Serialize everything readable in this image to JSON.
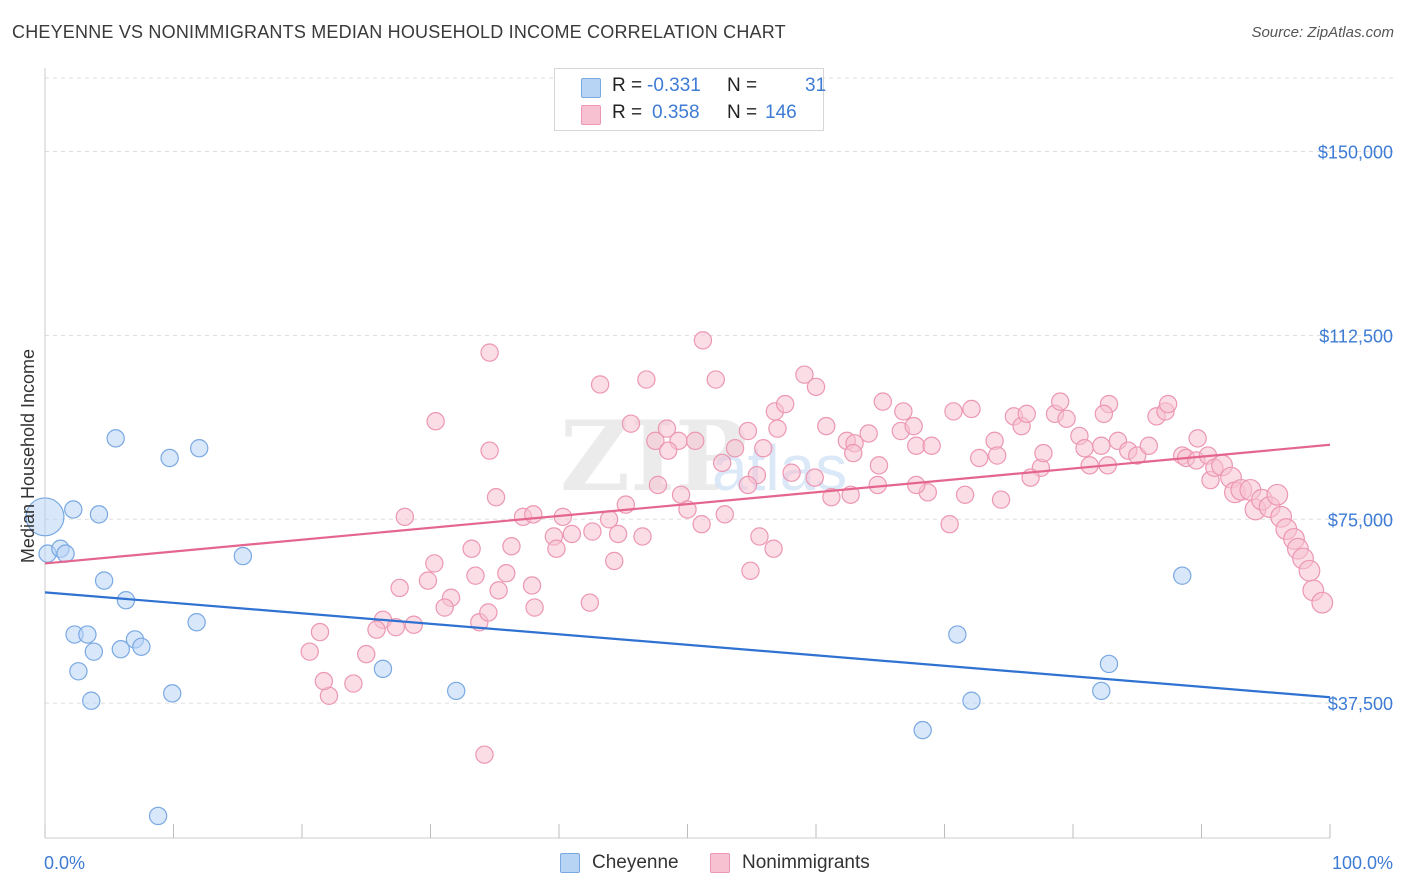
{
  "title": "CHEYENNE VS NONIMMIGRANTS MEDIAN HOUSEHOLD INCOME CORRELATION CHART",
  "source": "Source: ZipAtlas.com",
  "colors": {
    "cheyenne_fill": "#b8d4f5",
    "cheyenne_stroke": "#7aa9e2",
    "cheyenne_line": "#2f72d1",
    "nonimm_fill": "#f7c1d2",
    "nonimm_stroke": "#ec97b3",
    "nonimm_line": "#e4668f",
    "axis_text": "#3d7bd4",
    "grid": "#dddddd"
  },
  "legend_top": {
    "rows": [
      {
        "r_label": "R =",
        "r_value": "-0.331",
        "n_label": "N =",
        "n_value": "31"
      },
      {
        "r_label": "R =",
        "r_value": "0.358",
        "n_label": "N =",
        "n_value": "146"
      }
    ]
  },
  "legend_bottom": {
    "items": [
      "Cheyenne",
      "Nonimmigrants"
    ]
  },
  "chart_data": {
    "type": "scatter",
    "title": "CHEYENNE VS NONIMMIGRANTS MEDIAN HOUSEHOLD INCOME CORRELATION CHART",
    "xlabel": "",
    "ylabel": "Median Household Income",
    "xlim": [
      0,
      100
    ],
    "ylim": [
      10000,
      165000
    ],
    "x_tick_labels": [
      "0.0%",
      "100.0%"
    ],
    "y_ticks": [
      37500,
      75000,
      112500,
      150000
    ],
    "y_tick_labels": [
      "$37,500",
      "$75,000",
      "$112,500",
      "$150,000"
    ],
    "grid": true,
    "legend_position": "top-center",
    "watermark": "ZIPatlas",
    "series": [
      {
        "name": "Cheyenne",
        "trend": {
          "x": [
            0,
            100
          ],
          "y": [
            60100,
            38700
          ]
        },
        "points": [
          [
            0.0,
            75500,
            22
          ],
          [
            0.2,
            68000,
            10
          ],
          [
            1.2,
            69000,
            10
          ],
          [
            1.6,
            68000,
            10
          ],
          [
            2.2,
            77000,
            10
          ],
          [
            4.2,
            76000,
            10
          ],
          [
            5.5,
            91500,
            10
          ],
          [
            9.7,
            87500,
            10
          ],
          [
            12.0,
            89500,
            10
          ],
          [
            4.6,
            62500,
            10
          ],
          [
            6.3,
            58500,
            10
          ],
          [
            2.3,
            51500,
            10
          ],
          [
            3.3,
            51500,
            10
          ],
          [
            7.0,
            50500,
            10
          ],
          [
            3.8,
            48000,
            10
          ],
          [
            5.9,
            48500,
            10
          ],
          [
            7.5,
            49000,
            10
          ],
          [
            2.6,
            44000,
            10
          ],
          [
            11.8,
            54000,
            10
          ],
          [
            3.6,
            38000,
            10
          ],
          [
            9.9,
            39500,
            10
          ],
          [
            15.4,
            67500,
            10
          ],
          [
            26.3,
            44500,
            10
          ],
          [
            32.0,
            40000,
            10
          ],
          [
            68.3,
            32000,
            10
          ],
          [
            71.0,
            51500,
            10
          ],
          [
            72.1,
            38000,
            10
          ],
          [
            82.8,
            45500,
            10
          ],
          [
            82.2,
            40000,
            10
          ],
          [
            88.5,
            63500,
            10
          ],
          [
            8.8,
            14500,
            10
          ]
        ]
      },
      {
        "name": "Nonimmigrants",
        "trend": {
          "x": [
            0,
            100
          ],
          "y": [
            66000,
            90200
          ]
        },
        "points": [
          [
            34.6,
            109000,
            10
          ],
          [
            51.2,
            111500,
            10
          ],
          [
            43.2,
            102500,
            10
          ],
          [
            46.8,
            103500,
            10
          ],
          [
            52.2,
            103500,
            10
          ],
          [
            59.1,
            104500,
            10
          ],
          [
            60.0,
            102000,
            10
          ],
          [
            30.4,
            95000,
            10
          ],
          [
            34.6,
            89000,
            10
          ],
          [
            45.6,
            94500,
            10
          ],
          [
            48.4,
            93500,
            10
          ],
          [
            47.5,
            91000,
            10
          ],
          [
            49.3,
            91000,
            10
          ],
          [
            48.5,
            89000,
            10
          ],
          [
            50.6,
            91000,
            10
          ],
          [
            52.7,
            86500,
            10
          ],
          [
            53.7,
            89500,
            10
          ],
          [
            54.7,
            93000,
            10
          ],
          [
            55.9,
            89500,
            10
          ],
          [
            57.0,
            93500,
            10
          ],
          [
            56.8,
            97000,
            10
          ],
          [
            57.6,
            98500,
            10
          ],
          [
            60.8,
            94000,
            10
          ],
          [
            62.4,
            91000,
            10
          ],
          [
            63.0,
            90500,
            10
          ],
          [
            64.1,
            92500,
            10
          ],
          [
            64.9,
            86000,
            10
          ],
          [
            65.2,
            99000,
            10
          ],
          [
            66.6,
            93000,
            10
          ],
          [
            66.8,
            97000,
            10
          ],
          [
            67.6,
            94000,
            10
          ],
          [
            67.8,
            90000,
            10
          ],
          [
            69.0,
            90000,
            10
          ],
          [
            70.7,
            97000,
            10
          ],
          [
            72.1,
            97500,
            10
          ],
          [
            72.7,
            87500,
            10
          ],
          [
            73.9,
            91000,
            10
          ],
          [
            74.1,
            88000,
            10
          ],
          [
            75.4,
            96000,
            10
          ],
          [
            76.0,
            94000,
            10
          ],
          [
            76.4,
            96500,
            10
          ],
          [
            77.5,
            85500,
            10
          ],
          [
            77.7,
            88500,
            10
          ],
          [
            78.6,
            96500,
            10
          ],
          [
            79.0,
            99000,
            10
          ],
          [
            79.5,
            95500,
            10
          ],
          [
            80.5,
            92000,
            10
          ],
          [
            80.9,
            89500,
            10
          ],
          [
            81.3,
            86000,
            10
          ],
          [
            82.2,
            90000,
            10
          ],
          [
            82.8,
            98500,
            10
          ],
          [
            82.7,
            86000,
            10
          ],
          [
            83.5,
            91000,
            10
          ],
          [
            84.3,
            89000,
            10
          ],
          [
            85.0,
            88000,
            10
          ],
          [
            85.9,
            90000,
            10
          ],
          [
            86.5,
            96000,
            10
          ],
          [
            87.2,
            97000,
            10
          ],
          [
            87.4,
            98500,
            10
          ],
          [
            88.5,
            88000,
            10
          ],
          [
            88.8,
            87500,
            10
          ],
          [
            89.7,
            91500,
            10
          ],
          [
            89.6,
            87000,
            10
          ],
          [
            90.5,
            88000,
            10
          ],
          [
            90.7,
            83000,
            10
          ],
          [
            91.0,
            85500,
            10
          ],
          [
            91.6,
            86000,
            12
          ],
          [
            92.3,
            83500,
            12
          ],
          [
            92.6,
            80500,
            12
          ],
          [
            93.1,
            81000,
            12
          ],
          [
            93.8,
            81000,
            12
          ],
          [
            94.2,
            77000,
            12
          ],
          [
            94.7,
            79000,
            12
          ],
          [
            95.3,
            77500,
            12
          ],
          [
            95.9,
            80000,
            12
          ],
          [
            96.2,
            75500,
            12
          ],
          [
            96.6,
            73000,
            12
          ],
          [
            97.2,
            71000,
            12
          ],
          [
            97.5,
            69000,
            12
          ],
          [
            97.9,
            67000,
            12
          ],
          [
            98.4,
            64500,
            12
          ],
          [
            98.7,
            60500,
            12
          ],
          [
            99.4,
            58000,
            12
          ],
          [
            82.4,
            96500,
            10
          ],
          [
            76.7,
            83500,
            10
          ],
          [
            74.4,
            79000,
            10
          ],
          [
            71.6,
            80000,
            10
          ],
          [
            68.7,
            80500,
            10
          ],
          [
            67.8,
            82000,
            10
          ],
          [
            64.8,
            82000,
            10
          ],
          [
            62.7,
            80000,
            10
          ],
          [
            61.2,
            79500,
            10
          ],
          [
            59.9,
            83500,
            10
          ],
          [
            58.1,
            84500,
            10
          ],
          [
            55.4,
            84000,
            10
          ],
          [
            54.7,
            82000,
            10
          ],
          [
            52.9,
            76000,
            10
          ],
          [
            51.1,
            74000,
            10
          ],
          [
            49.5,
            80000,
            10
          ],
          [
            46.5,
            71500,
            10
          ],
          [
            44.6,
            72000,
            10
          ],
          [
            42.6,
            72500,
            10
          ],
          [
            41.0,
            72000,
            10
          ],
          [
            39.6,
            71500,
            10
          ],
          [
            37.2,
            75500,
            10
          ],
          [
            36.3,
            69500,
            10
          ],
          [
            35.9,
            64000,
            10
          ],
          [
            35.3,
            60500,
            10
          ],
          [
            33.5,
            63500,
            10
          ],
          [
            33.2,
            69000,
            10
          ],
          [
            31.6,
            59000,
            10
          ],
          [
            30.3,
            66000,
            10
          ],
          [
            29.8,
            62500,
            10
          ],
          [
            28.7,
            53500,
            10
          ],
          [
            28.0,
            75500,
            10
          ],
          [
            27.6,
            61000,
            10
          ],
          [
            26.3,
            54500,
            10
          ],
          [
            25.8,
            52500,
            10
          ],
          [
            25.0,
            47500,
            10
          ],
          [
            24.0,
            41500,
            10
          ],
          [
            22.1,
            39000,
            10
          ],
          [
            21.7,
            42000,
            10
          ],
          [
            21.4,
            52000,
            10
          ],
          [
            20.6,
            48000,
            10
          ],
          [
            38.1,
            57000,
            10
          ],
          [
            38.0,
            76000,
            10
          ],
          [
            39.8,
            69000,
            10
          ],
          [
            37.9,
            61500,
            10
          ],
          [
            40.3,
            75500,
            10
          ],
          [
            42.4,
            58000,
            10
          ],
          [
            43.9,
            75000,
            10
          ],
          [
            44.3,
            66500,
            10
          ],
          [
            35.1,
            79500,
            10
          ],
          [
            33.8,
            54000,
            10
          ],
          [
            45.2,
            78000,
            10
          ],
          [
            47.7,
            82000,
            10
          ],
          [
            50.0,
            77000,
            10
          ],
          [
            55.6,
            71500,
            10
          ],
          [
            54.9,
            64500,
            10
          ],
          [
            56.7,
            69000,
            10
          ],
          [
            62.9,
            88500,
            10
          ],
          [
            70.4,
            74000,
            10
          ],
          [
            34.2,
            27000,
            10
          ],
          [
            31.1,
            57000,
            10
          ],
          [
            27.3,
            53000,
            10
          ],
          [
            34.5,
            56000,
            10
          ]
        ]
      }
    ]
  }
}
